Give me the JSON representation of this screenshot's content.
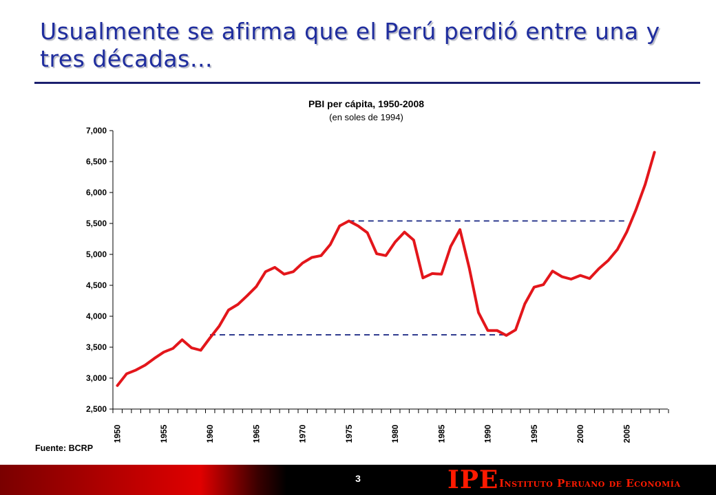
{
  "slide": {
    "title": "Usualmente se afirma que el Perú perdió entre una y tres décadas…",
    "source": "Fuente: BCRP",
    "page_number": "3"
  },
  "logo": {
    "mark": "IPE",
    "name": "Instituto Peruano de Economía"
  },
  "chart_data": {
    "type": "line",
    "title": "PBI per cápita, 1950-2008",
    "subtitle": "(en soles de 1994)",
    "xlabel": "",
    "ylabel": "",
    "ylim": [
      2500,
      7000
    ],
    "yticks": [
      2500,
      3000,
      3500,
      4000,
      4500,
      5000,
      5500,
      6000,
      6500,
      7000
    ],
    "ytick_labels": [
      "2,500",
      "3,000",
      "3,500",
      "4,000",
      "4,500",
      "5,000",
      "5,500",
      "6,000",
      "6,500",
      "7,000"
    ],
    "xticks": [
      1950,
      1955,
      1960,
      1965,
      1970,
      1975,
      1980,
      1985,
      1990,
      1995,
      2000,
      2005
    ],
    "xtick_labels": [
      "1950",
      "1955",
      "1960",
      "1965",
      "1970",
      "1975",
      "1980",
      "1985",
      "1990",
      "1995",
      "2000",
      "2005"
    ],
    "grid": false,
    "series_color": "#e3161b",
    "reference_line_color": "#2f3b8f",
    "x": [
      1950,
      1951,
      1952,
      1953,
      1954,
      1955,
      1956,
      1957,
      1958,
      1959,
      1960,
      1961,
      1962,
      1963,
      1964,
      1965,
      1966,
      1967,
      1968,
      1969,
      1970,
      1971,
      1972,
      1973,
      1974,
      1975,
      1976,
      1977,
      1978,
      1979,
      1980,
      1981,
      1982,
      1983,
      1984,
      1985,
      1986,
      1987,
      1988,
      1989,
      1990,
      1991,
      1992,
      1993,
      1994,
      1995,
      1996,
      1997,
      1998,
      1999,
      2000,
      2001,
      2002,
      2003,
      2004,
      2005,
      2006,
      2007,
      2008
    ],
    "series": [
      {
        "values": [
          2880,
          3070,
          3130,
          3210,
          3320,
          3420,
          3480,
          3620,
          3490,
          3450,
          3650,
          3840,
          4100,
          4190,
          4330,
          4480,
          4720,
          4790,
          4680,
          4720,
          4860,
          4950,
          4980,
          5160,
          5460,
          5540,
          5460,
          5350,
          5010,
          4980,
          5200,
          5360,
          5230,
          4620,
          4690,
          4680,
          5130,
          5400,
          4780,
          4060,
          3770,
          3770,
          3690,
          3780,
          4200,
          4470,
          4510,
          4730,
          4640,
          4600,
          4660,
          4610,
          4770,
          4900,
          5080,
          5360,
          5720,
          6130,
          6650
        ]
      }
    ],
    "reference_lines": [
      {
        "y": 3700,
        "x_start": 1960,
        "x_end": 1992
      },
      {
        "y": 5540,
        "x_start": 1975,
        "x_end": 2005
      }
    ]
  }
}
